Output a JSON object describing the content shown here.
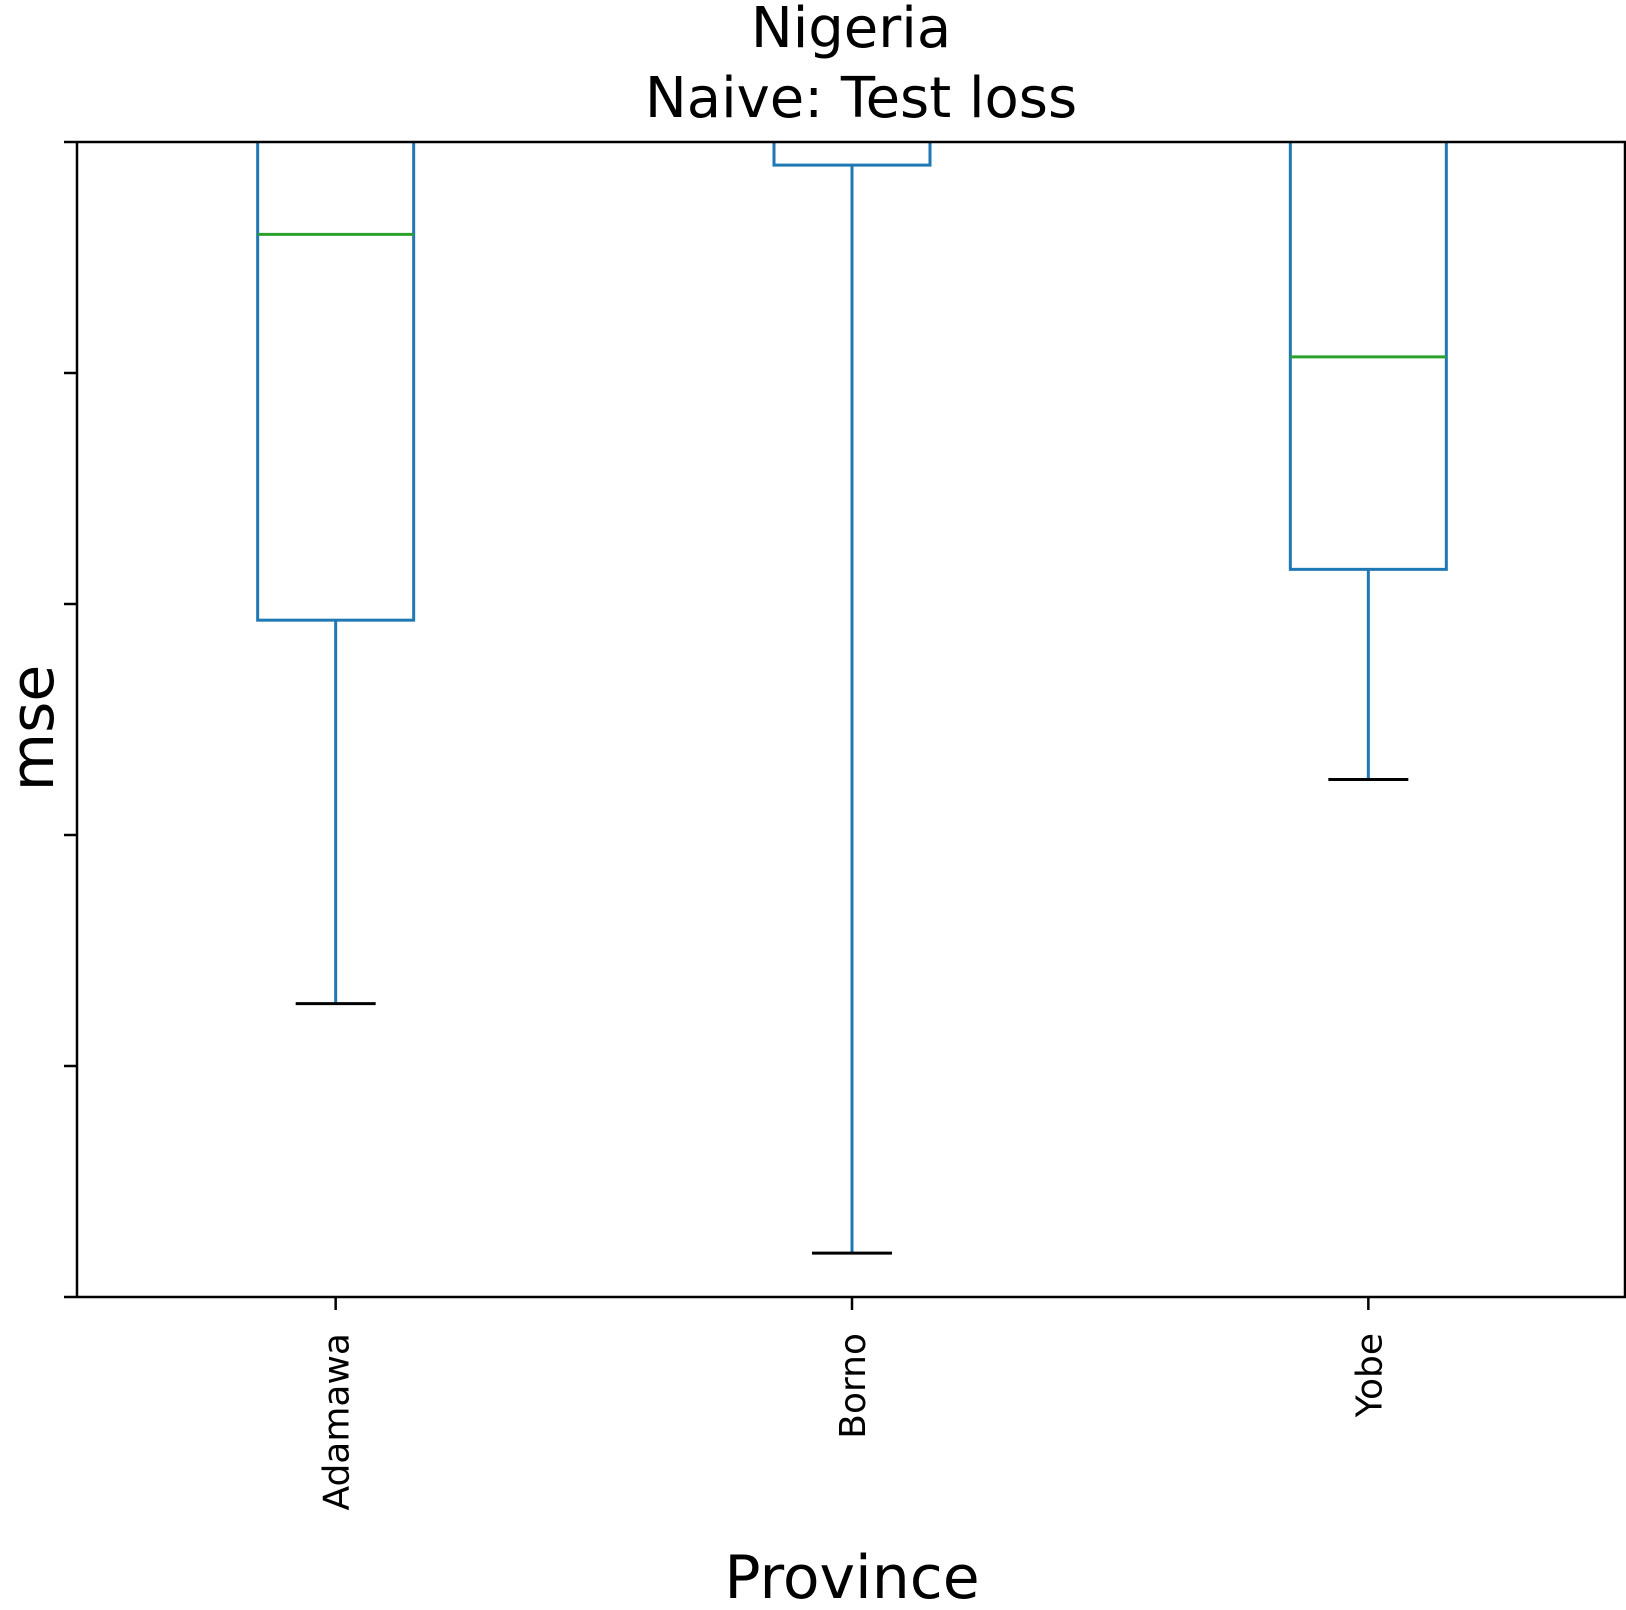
{
  "chart_data": {
    "type": "box",
    "title_lines": [
      "Nigeria",
      "Naive: Test loss"
    ],
    "xlabel": "Province",
    "ylabel": "mse",
    "categories": [
      "Adamawa",
      "Borno",
      "Yobe"
    ],
    "ylim": [
      0,
      5
    ],
    "yticks": [
      0,
      1,
      2,
      3,
      4,
      5
    ],
    "ytick_labels_shown": false,
    "grid": false,
    "colors": {
      "box": "#1f77b4",
      "median": "#2ca02c",
      "cap": "#000000",
      "axis": "#000000"
    },
    "boxes": [
      {
        "category": "Adamawa",
        "whisker_low": 1.27,
        "q1": 2.93,
        "median": 4.6,
        "q3": 5.2,
        "whisker_high": 5.2
      },
      {
        "category": "Borno",
        "whisker_low": 0.19,
        "q1": 4.9,
        "median": 5.2,
        "q3": 5.2,
        "whisker_high": 5.2
      },
      {
        "category": "Yobe",
        "whisker_low": 2.24,
        "q1": 3.15,
        "median": 4.07,
        "q3": 5.2,
        "whisker_high": 5.2
      }
    ]
  }
}
